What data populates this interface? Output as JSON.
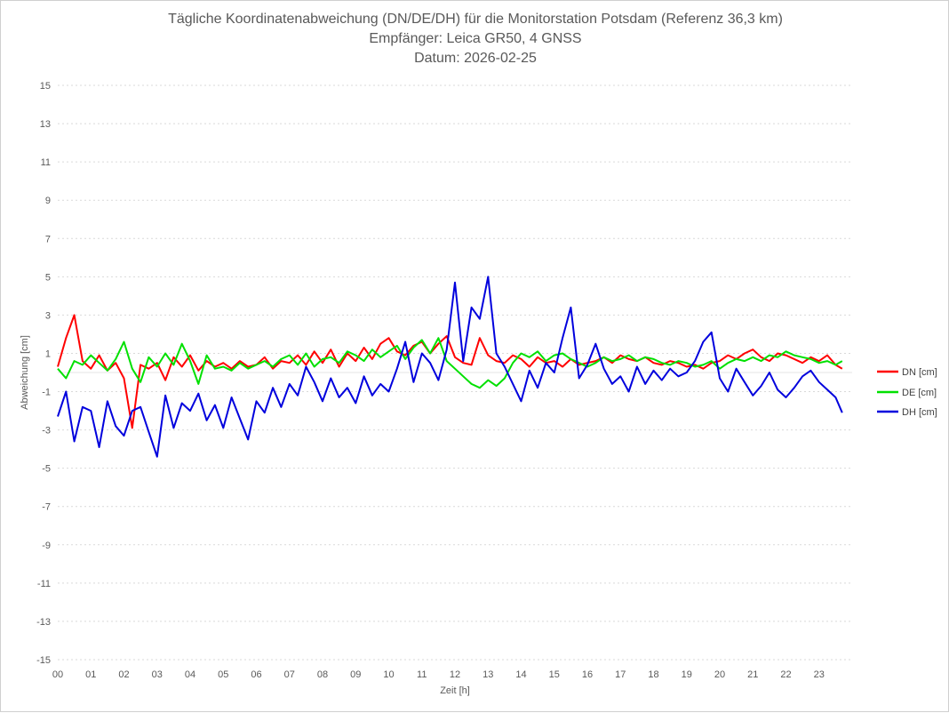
{
  "chart_data": {
    "type": "line",
    "title_lines": [
      "Tägliche Koordinatenabweichung (DN/DE/DH) für die Monitorstation Potsdam (Referenz 36,3 km)",
      "Empfänger: Leica GR50, 4 GNSS",
      "Datum: 2026-02-25"
    ],
    "xlabel": "Zeit [h]",
    "ylabel": "Abweichung [cm]",
    "xlim": [
      0,
      24
    ],
    "ylim": [
      -15,
      15
    ],
    "xticks": [
      "00",
      "01",
      "02",
      "03",
      "04",
      "05",
      "06",
      "07",
      "08",
      "09",
      "10",
      "11",
      "12",
      "13",
      "14",
      "15",
      "16",
      "17",
      "18",
      "19",
      "20",
      "21",
      "22",
      "23"
    ],
    "yticks": [
      15,
      13,
      11,
      9,
      7,
      5,
      3,
      1,
      -1,
      -3,
      -5,
      -7,
      -9,
      -11,
      -13,
      -15
    ],
    "grid": "horizontal dotted",
    "legend_position": "right",
    "series": [
      {
        "name": "DN [cm]",
        "color": "#ff0000",
        "x": [
          0,
          0.25,
          0.5,
          0.75,
          1,
          1.25,
          1.5,
          1.75,
          2,
          2.25,
          2.5,
          2.75,
          3,
          3.25,
          3.5,
          3.75,
          4,
          4.25,
          4.5,
          4.75,
          5,
          5.25,
          5.5,
          5.75,
          6,
          6.25,
          6.5,
          6.75,
          7,
          7.25,
          7.5,
          7.75,
          8,
          8.25,
          8.5,
          8.75,
          9,
          9.25,
          9.5,
          9.75,
          10,
          10.25,
          10.5,
          10.75,
          11,
          11.25,
          11.5,
          11.75,
          12,
          12.25,
          12.5,
          12.75,
          13,
          13.25,
          13.5,
          13.75,
          14,
          14.25,
          14.5,
          14.75,
          15,
          15.25,
          15.5,
          15.75,
          16,
          16.25,
          16.5,
          16.75,
          17,
          17.25,
          17.5,
          17.75,
          18,
          18.25,
          18.5,
          18.75,
          19,
          19.25,
          19.5,
          19.75,
          20,
          20.25,
          20.5,
          20.75,
          21,
          21.25,
          21.5,
          21.75,
          22,
          22.25,
          22.5,
          22.75,
          23,
          23.25,
          23.5,
          23.7
        ],
        "y": [
          0.3,
          1.8,
          3.0,
          0.6,
          0.2,
          0.9,
          0.1,
          0.5,
          -0.3,
          -2.9,
          0.4,
          0.2,
          0.5,
          -0.4,
          0.8,
          0.3,
          0.9,
          0.1,
          0.6,
          0.3,
          0.5,
          0.2,
          0.6,
          0.3,
          0.4,
          0.8,
          0.2,
          0.6,
          0.5,
          0.9,
          0.4,
          1.1,
          0.5,
          1.2,
          0.3,
          1.0,
          0.6,
          1.3,
          0.7,
          1.5,
          1.8,
          1.1,
          0.9,
          1.4,
          1.6,
          1.0,
          1.5,
          1.9,
          0.8,
          0.5,
          0.4,
          1.8,
          0.9,
          0.6,
          0.5,
          0.9,
          0.7,
          0.3,
          0.8,
          0.5,
          0.6,
          0.3,
          0.7,
          0.4,
          0.5,
          0.6,
          0.8,
          0.5,
          0.9,
          0.7,
          0.6,
          0.8,
          0.5,
          0.4,
          0.6,
          0.5,
          0.3,
          0.4,
          0.2,
          0.5,
          0.6,
          0.9,
          0.7,
          1.0,
          1.2,
          0.8,
          0.6,
          1.0,
          0.9,
          0.7,
          0.5,
          0.8,
          0.6,
          0.9,
          0.4,
          0.2
        ]
      },
      {
        "name": "DE [cm]",
        "color": "#00e000",
        "x": [
          0,
          0.25,
          0.5,
          0.75,
          1,
          1.25,
          1.5,
          1.75,
          2,
          2.25,
          2.5,
          2.75,
          3,
          3.25,
          3.5,
          3.75,
          4,
          4.25,
          4.5,
          4.75,
          5,
          5.25,
          5.5,
          5.75,
          6,
          6.25,
          6.5,
          6.75,
          7,
          7.25,
          7.5,
          7.75,
          8,
          8.25,
          8.5,
          8.75,
          9,
          9.25,
          9.5,
          9.75,
          10,
          10.25,
          10.5,
          10.75,
          11,
          11.25,
          11.5,
          11.75,
          12,
          12.25,
          12.5,
          12.75,
          13,
          13.25,
          13.5,
          13.75,
          14,
          14.25,
          14.5,
          14.75,
          15,
          15.25,
          15.5,
          15.75,
          16,
          16.25,
          16.5,
          16.75,
          17,
          17.25,
          17.5,
          17.75,
          18,
          18.25,
          18.5,
          18.75,
          19,
          19.25,
          19.5,
          19.75,
          20,
          20.25,
          20.5,
          20.75,
          21,
          21.25,
          21.5,
          21.75,
          22,
          22.25,
          22.5,
          22.75,
          23,
          23.25,
          23.5,
          23.7
        ],
        "y": [
          0.2,
          -0.3,
          0.6,
          0.4,
          0.9,
          0.5,
          0.1,
          0.7,
          1.6,
          0.2,
          -0.5,
          0.8,
          0.3,
          1.0,
          0.4,
          1.5,
          0.6,
          -0.6,
          0.9,
          0.2,
          0.3,
          0.1,
          0.5,
          0.2,
          0.4,
          0.6,
          0.3,
          0.7,
          0.9,
          0.4,
          1.0,
          0.3,
          0.7,
          0.8,
          0.5,
          1.1,
          0.9,
          0.6,
          1.2,
          0.8,
          1.1,
          1.4,
          0.7,
          1.3,
          1.7,
          1.0,
          1.8,
          0.6,
          0.2,
          -0.2,
          -0.6,
          -0.8,
          -0.4,
          -0.7,
          -0.3,
          0.5,
          1.0,
          0.8,
          1.1,
          0.6,
          0.9,
          1.0,
          0.7,
          0.5,
          0.3,
          0.5,
          0.8,
          0.6,
          0.7,
          0.9,
          0.6,
          0.8,
          0.7,
          0.5,
          0.4,
          0.6,
          0.5,
          0.3,
          0.4,
          0.6,
          0.2,
          0.5,
          0.7,
          0.6,
          0.8,
          0.6,
          0.9,
          0.8,
          1.1,
          0.9,
          0.8,
          0.7,
          0.5,
          0.6,
          0.4,
          0.6
        ]
      },
      {
        "name": "DH [cm]",
        "color": "#0000dd",
        "x": [
          0,
          0.25,
          0.5,
          0.75,
          1,
          1.25,
          1.5,
          1.75,
          2,
          2.25,
          2.5,
          2.75,
          3,
          3.25,
          3.5,
          3.75,
          4,
          4.25,
          4.5,
          4.75,
          5,
          5.25,
          5.5,
          5.75,
          6,
          6.25,
          6.5,
          6.75,
          7,
          7.25,
          7.5,
          7.75,
          8,
          8.25,
          8.5,
          8.75,
          9,
          9.25,
          9.5,
          9.75,
          10,
          10.25,
          10.5,
          10.75,
          11,
          11.25,
          11.5,
          11.75,
          12,
          12.25,
          12.5,
          12.75,
          13,
          13.25,
          13.5,
          13.75,
          14,
          14.25,
          14.5,
          14.75,
          15,
          15.25,
          15.5,
          15.75,
          16,
          16.25,
          16.5,
          16.75,
          17,
          17.25,
          17.5,
          17.75,
          18,
          18.25,
          18.5,
          18.75,
          19,
          19.25,
          19.5,
          19.75,
          20,
          20.25,
          20.5,
          20.75,
          21,
          21.25,
          21.5,
          21.75,
          22,
          22.25,
          22.5,
          22.75,
          23,
          23.25,
          23.5,
          23.7
        ],
        "y": [
          -2.3,
          -1.0,
          -3.6,
          -1.8,
          -2.0,
          -3.9,
          -1.5,
          -2.8,
          -3.3,
          -2.0,
          -1.8,
          -3.1,
          -4.4,
          -1.2,
          -2.9,
          -1.6,
          -2.0,
          -1.1,
          -2.5,
          -1.7,
          -2.9,
          -1.3,
          -2.4,
          -3.5,
          -1.5,
          -2.1,
          -0.8,
          -1.8,
          -0.6,
          -1.2,
          0.3,
          -0.5,
          -1.5,
          -0.3,
          -1.3,
          -0.8,
          -1.6,
          -0.2,
          -1.2,
          -0.6,
          -1.0,
          0.2,
          1.6,
          -0.5,
          1.0,
          0.5,
          -0.4,
          1.2,
          4.7,
          0.6,
          3.4,
          2.8,
          5.0,
          1.0,
          0.3,
          -0.6,
          -1.5,
          0.1,
          -0.8,
          0.5,
          0.0,
          1.8,
          3.4,
          -0.3,
          0.4,
          1.5,
          0.2,
          -0.6,
          -0.2,
          -1.0,
          0.3,
          -0.6,
          0.1,
          -0.4,
          0.2,
          -0.2,
          0.0,
          0.6,
          1.6,
          2.1,
          -0.3,
          -1.0,
          0.2,
          -0.5,
          -1.2,
          -0.7,
          0.0,
          -0.9,
          -1.3,
          -0.8,
          -0.2,
          0.1,
          -0.5,
          -0.9,
          -1.3,
          -2.1
        ]
      }
    ]
  }
}
